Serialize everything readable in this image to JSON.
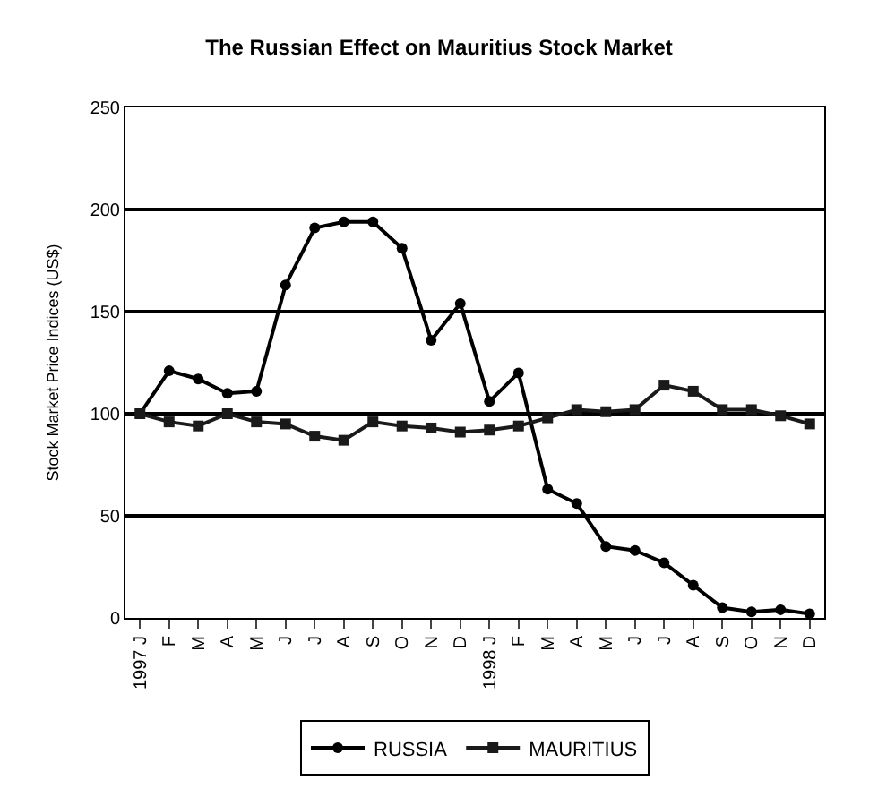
{
  "chart_data": {
    "type": "line",
    "title": "The Russian Effect on Mauritius Stock Market",
    "ylabel": "Stock Market Price Indices (US$)",
    "categories": [
      "1997 J",
      "F",
      "M",
      "A",
      "M",
      "J",
      "J",
      "A",
      "S",
      "O",
      "N",
      "D",
      "1998 J",
      "F",
      "M",
      "A",
      "M",
      "J",
      "J",
      "A",
      "S",
      "O",
      "N",
      "D"
    ],
    "series": [
      {
        "name": "RUSSIA",
        "color": "#000000",
        "marker": "circle",
        "values": [
          100,
          121,
          117,
          110,
          111,
          163,
          191,
          194,
          194,
          181,
          136,
          154,
          106,
          120,
          63,
          56,
          35,
          33,
          27,
          16,
          5,
          3,
          4,
          2
        ]
      },
      {
        "name": "MAURITIUS",
        "color": "#1a1a1a",
        "marker": "square",
        "values": [
          100,
          96,
          94,
          100,
          96,
          95,
          89,
          87,
          96,
          94,
          93,
          91,
          92,
          94,
          98,
          102,
          101,
          102,
          114,
          111,
          102,
          102,
          99,
          95
        ]
      }
    ],
    "ylim": [
      0,
      250
    ],
    "yticks": [
      0,
      50,
      100,
      150,
      200,
      250
    ],
    "grid": "y",
    "legend": "bottom",
    "line_style": "solid"
  }
}
